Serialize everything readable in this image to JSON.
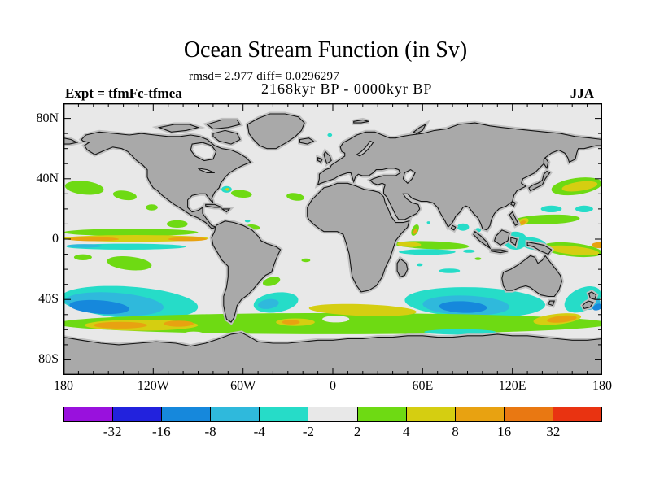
{
  "header": {
    "title": "Ocean Stream Function (in Sv)",
    "stats_line": "rmsd= 2.977 diff= 0.0296297",
    "period_line": "2168kyr BP - 0000kyr BP",
    "experiment_label": "Expt = tfmFc-tfmea",
    "season_label": "JJA"
  },
  "chart_data": {
    "type": "heatmap",
    "title": "Ocean Stream Function (in Sv)",
    "units": "Sv",
    "rmsd": 2.977,
    "diff": 0.0296297,
    "comparison": "2168kyr BP - 0000kyr BP",
    "experiment": "tfmFc-tfmea",
    "season": "JJA",
    "projection": "equirectangular",
    "lon_range": [
      -180,
      180
    ],
    "lat_range": [
      -90,
      90
    ],
    "grid": false,
    "legend_position": "bottom-colorbar",
    "contour_levels": [
      -32,
      -16,
      -8,
      -4,
      -2,
      2,
      4,
      8,
      16,
      32
    ],
    "palette": [
      "#9911DD",
      "#2222DD",
      "#1688DC",
      "#2FB9DC",
      "#26DCC8",
      "#E8E8E8",
      "#6EDA13",
      "#D5CE11",
      "#E8A211",
      "#E97812",
      "#E93311"
    ],
    "background_color": "#E8E8E8",
    "land_color": "#A9A9A9",
    "land_fringe_color": "#C0C0C0",
    "coast_color": "#141414",
    "x_axis": {
      "minor_step_deg": 10,
      "major_step_deg": 60,
      "ticks": [
        {
          "deg": -180,
          "label": "180"
        },
        {
          "deg": -120,
          "label": "120W"
        },
        {
          "deg": -60,
          "label": "60W"
        },
        {
          "deg": 0,
          "label": "0"
        },
        {
          "deg": 60,
          "label": "60E"
        },
        {
          "deg": 120,
          "label": "120E"
        },
        {
          "deg": 180,
          "label": "180"
        }
      ]
    },
    "y_axis": {
      "minor_step_deg": 10,
      "major_step_deg": 40,
      "ticks": [
        {
          "deg": 80,
          "label": "80N"
        },
        {
          "deg": 40,
          "label": "40N"
        },
        {
          "deg": 0,
          "label": "0"
        },
        {
          "deg": -40,
          "label": "40S"
        },
        {
          "deg": -80,
          "label": "80S"
        }
      ]
    },
    "anomaly_regions": [
      {
        "lon": 163,
        "lat": 35,
        "rlon": 17,
        "rlat": 5.5,
        "rot": -8,
        "level": 6
      },
      {
        "lon": 165,
        "lat": 35,
        "rlon": 12,
        "rlat": 3,
        "rot": -8,
        "level": 7
      },
      {
        "lon": -166,
        "lat": 34,
        "rlon": 13,
        "rlat": 4.5,
        "rot": 6,
        "level": 6
      },
      {
        "lon": -139,
        "lat": 29,
        "rlon": 8,
        "rlat": 3,
        "rot": 8,
        "level": 6
      },
      {
        "lon": -121,
        "lat": 21,
        "rlon": 4,
        "rlat": 2,
        "rot": 0,
        "level": 6
      },
      {
        "lon": -104,
        "lat": 10,
        "rlon": 7,
        "rlat": 2.5,
        "rot": 0,
        "level": 6
      },
      {
        "lon": -71,
        "lat": 33,
        "rlon": 3.5,
        "rlat": 2.2,
        "rot": 0,
        "level": 4
      },
      {
        "lon": -70.5,
        "lat": 33,
        "rlon": 1.3,
        "rlat": 0.9,
        "rot": 0,
        "level": 7
      },
      {
        "lon": -61,
        "lat": 30,
        "rlon": 7,
        "rlat": 2.5,
        "rot": 5,
        "level": 6
      },
      {
        "lon": -25,
        "lat": 28,
        "rlon": 6,
        "rlat": 2.5,
        "rot": 8,
        "level": 6
      },
      {
        "lon": -2,
        "lat": 69,
        "rlon": 1.6,
        "rlat": 1.2,
        "rot": 0,
        "level": 4
      },
      {
        "lon": 146,
        "lat": 20,
        "rlon": 7,
        "rlat": 2.2,
        "rot": 0,
        "level": 4
      },
      {
        "lon": 168,
        "lat": 20,
        "rlon": 6,
        "rlat": 2.2,
        "rot": 0,
        "level": 4
      },
      {
        "lon": 143,
        "lat": 13,
        "rlon": 22,
        "rlat": 3.2,
        "rot": -2,
        "level": 6
      },
      {
        "lon": 127,
        "lat": 11.5,
        "rlon": 4,
        "rlat": 2.2,
        "rot": -20,
        "level": 7
      },
      {
        "lon": 127,
        "lat": 11,
        "rlon": 2,
        "rlat": 1.2,
        "rot": -20,
        "level": 8
      },
      {
        "lon": -135,
        "lat": 4.5,
        "rlon": 45,
        "rlat": 2.4,
        "rot": 0,
        "level": 6
      },
      {
        "lon": -132,
        "lat": 0.5,
        "rlon": 49,
        "rlat": 2.2,
        "rot": 0,
        "level": 7
      },
      {
        "lon": -160,
        "lat": 0,
        "rlon": 17,
        "rlat": 1.3,
        "rot": 0,
        "level": 8
      },
      {
        "lon": -97,
        "lat": 0,
        "rlon": 13,
        "rlat": 1.3,
        "rot": 0,
        "level": 8
      },
      {
        "lon": -138,
        "lat": -5,
        "rlon": 40,
        "rlat": 2,
        "rot": 0,
        "level": 4
      },
      {
        "lon": -166,
        "lat": -4.5,
        "rlon": 12,
        "rlat": 1.2,
        "rot": 0,
        "level": 3
      },
      {
        "lon": -136,
        "lat": -16,
        "rlon": 15,
        "rlat": 4.5,
        "rot": 6,
        "level": 6
      },
      {
        "lon": -167,
        "lat": -12,
        "rlon": 6,
        "rlat": 2,
        "rot": 0,
        "level": 6
      },
      {
        "lon": 160,
        "lat": -7,
        "rlon": 20,
        "rlat": 4.5,
        "rot": 6,
        "level": 6
      },
      {
        "lon": 161,
        "lat": -7.5,
        "rlon": 17,
        "rlat": 2.8,
        "rot": 6,
        "level": 7
      },
      {
        "lon": 178,
        "lat": -4,
        "rlon": 5,
        "rlat": 2,
        "rot": 0,
        "level": 8
      },
      {
        "lon": 122,
        "lat": -1,
        "rlon": 8,
        "rlat": 6,
        "rot": 0,
        "level": 4
      },
      {
        "lon": 134,
        "lat": -3,
        "rlon": 9,
        "rlat": 4,
        "rot": 10,
        "level": 4
      },
      {
        "lon": -53,
        "lat": 8,
        "rlon": 4.5,
        "rlat": 1.6,
        "rot": 10,
        "level": 6
      },
      {
        "lon": -57,
        "lat": 12,
        "rlon": 1.8,
        "rlat": 0.9,
        "rot": 0,
        "level": 4
      },
      {
        "lon": -18,
        "lat": -14,
        "rlon": 3,
        "rlat": 1.2,
        "rot": 0,
        "level": 6
      },
      {
        "lon": 66,
        "lat": -4,
        "rlon": 25,
        "rlat": 2.6,
        "rot": 2,
        "level": 6
      },
      {
        "lon": 51,
        "lat": -3.5,
        "rlon": 8,
        "rlat": 1.7,
        "rot": 2,
        "level": 7
      },
      {
        "lon": 63,
        "lat": -8.5,
        "rlon": 19,
        "rlat": 1.9,
        "rot": 0,
        "level": 4
      },
      {
        "lon": 91,
        "lat": -8,
        "rlon": 4,
        "rlat": 1.1,
        "rot": 0,
        "level": 4
      },
      {
        "lon": 78,
        "lat": -21,
        "rlon": 7,
        "rlat": 1.5,
        "rot": 0,
        "level": 4
      },
      {
        "lon": 58,
        "lat": -17,
        "rlon": 2,
        "rlat": 1,
        "rot": 0,
        "level": 4
      },
      {
        "lon": 87,
        "lat": 8,
        "rlon": 4,
        "rlat": 2.4,
        "rot": 0,
        "level": 4
      },
      {
        "lon": 97,
        "lat": 6,
        "rlon": 2,
        "rlat": 1.4,
        "rot": 0,
        "level": 4
      },
      {
        "lon": 55,
        "lat": 6,
        "rlon": 2.2,
        "rlat": 4,
        "rot": 25,
        "level": 6
      },
      {
        "lon": 55,
        "lat": 5,
        "rlon": 1.1,
        "rlat": 1.8,
        "rot": 25,
        "level": 8
      },
      {
        "lon": 64,
        "lat": 11,
        "rlon": 1.2,
        "rlat": 0.8,
        "rot": 0,
        "level": 4
      },
      {
        "lon": 97,
        "lat": -13,
        "rlon": 2.2,
        "rlat": 0.9,
        "rot": 0,
        "level": 6
      },
      {
        "lon": -136,
        "lat": -42,
        "rlon": 46,
        "rlat": 10.5,
        "rot": 4,
        "level": 4
      },
      {
        "lon": -146,
        "lat": -43,
        "rlon": 33,
        "rlat": 7.5,
        "rot": 4,
        "level": 3
      },
      {
        "lon": -156,
        "lat": -45,
        "rlon": 20,
        "rlat": 4.5,
        "rot": 4,
        "level": 2
      },
      {
        "lon": -38,
        "lat": -42,
        "rlon": 15,
        "rlat": 6.5,
        "rot": -8,
        "level": 4
      },
      {
        "lon": -43,
        "lat": -43,
        "rlon": 7,
        "rlat": 3.2,
        "rot": -8,
        "level": 3
      },
      {
        "lon": 95,
        "lat": -42,
        "rlon": 47,
        "rlat": 10,
        "rot": 2,
        "level": 4
      },
      {
        "lon": 89,
        "lat": -44,
        "rlon": 29,
        "rlat": 6.5,
        "rot": 2,
        "level": 3
      },
      {
        "lon": 87,
        "lat": -45,
        "rlon": 16,
        "rlat": 3.8,
        "rot": 2,
        "level": 2
      },
      {
        "lon": 167,
        "lat": -40,
        "rlon": 13,
        "rlat": 7.5,
        "rot": -25,
        "level": 4
      },
      {
        "lon": 173,
        "lat": -43,
        "rlon": 6,
        "rlat": 3.5,
        "rot": -20,
        "level": 3
      },
      {
        "lon": 177,
        "lat": -45,
        "rlon": 3.5,
        "rlat": 2,
        "rot": -20,
        "level": 2
      },
      {
        "lon": -41,
        "lat": -28,
        "rlon": 6,
        "rlat": 2.8,
        "rot": -15,
        "level": 6
      },
      {
        "lon": 0,
        "lat": -56,
        "rlon": 185,
        "rlat": 7,
        "rot": 0,
        "level": 6
      },
      {
        "lon": 20,
        "lat": -47,
        "rlon": 36,
        "rlat": 3.8,
        "rot": 2,
        "level": 7
      },
      {
        "lon": -128,
        "lat": -57,
        "rlon": 38,
        "rlat": 3.6,
        "rot": 0,
        "level": 7
      },
      {
        "lon": -142,
        "lat": -57,
        "rlon": 18,
        "rlat": 2.2,
        "rot": 0,
        "level": 8
      },
      {
        "lon": -103,
        "lat": -56,
        "rlon": 10,
        "rlat": 2,
        "rot": 0,
        "level": 8
      },
      {
        "lon": 150,
        "lat": -53,
        "rlon": 16,
        "rlat": 3.5,
        "rot": -6,
        "level": 7
      },
      {
        "lon": 153,
        "lat": -53,
        "rlon": 10,
        "rlat": 2.2,
        "rot": -6,
        "level": 8
      },
      {
        "lon": -25,
        "lat": -55,
        "rlon": 13,
        "rlat": 2.5,
        "rot": 0,
        "level": 7
      },
      {
        "lon": -28,
        "lat": -55,
        "rlon": 6,
        "rlat": 1.5,
        "rot": 0,
        "level": 8
      },
      {
        "lon": 85,
        "lat": -61.5,
        "rlon": 24,
        "rlat": 1.8,
        "rot": 0,
        "level": 4
      },
      {
        "lon": -126,
        "lat": -64,
        "rlon": 16,
        "rlat": 2.4,
        "rot": 0,
        "level": 5
      },
      {
        "lon": 2,
        "lat": -53,
        "rlon": 9,
        "rlat": 2.2,
        "rot": 0,
        "level": 5
      },
      {
        "lon": -93,
        "lat": -63,
        "rlon": 7,
        "rlat": 1.8,
        "rot": 0,
        "level": 5
      }
    ]
  }
}
